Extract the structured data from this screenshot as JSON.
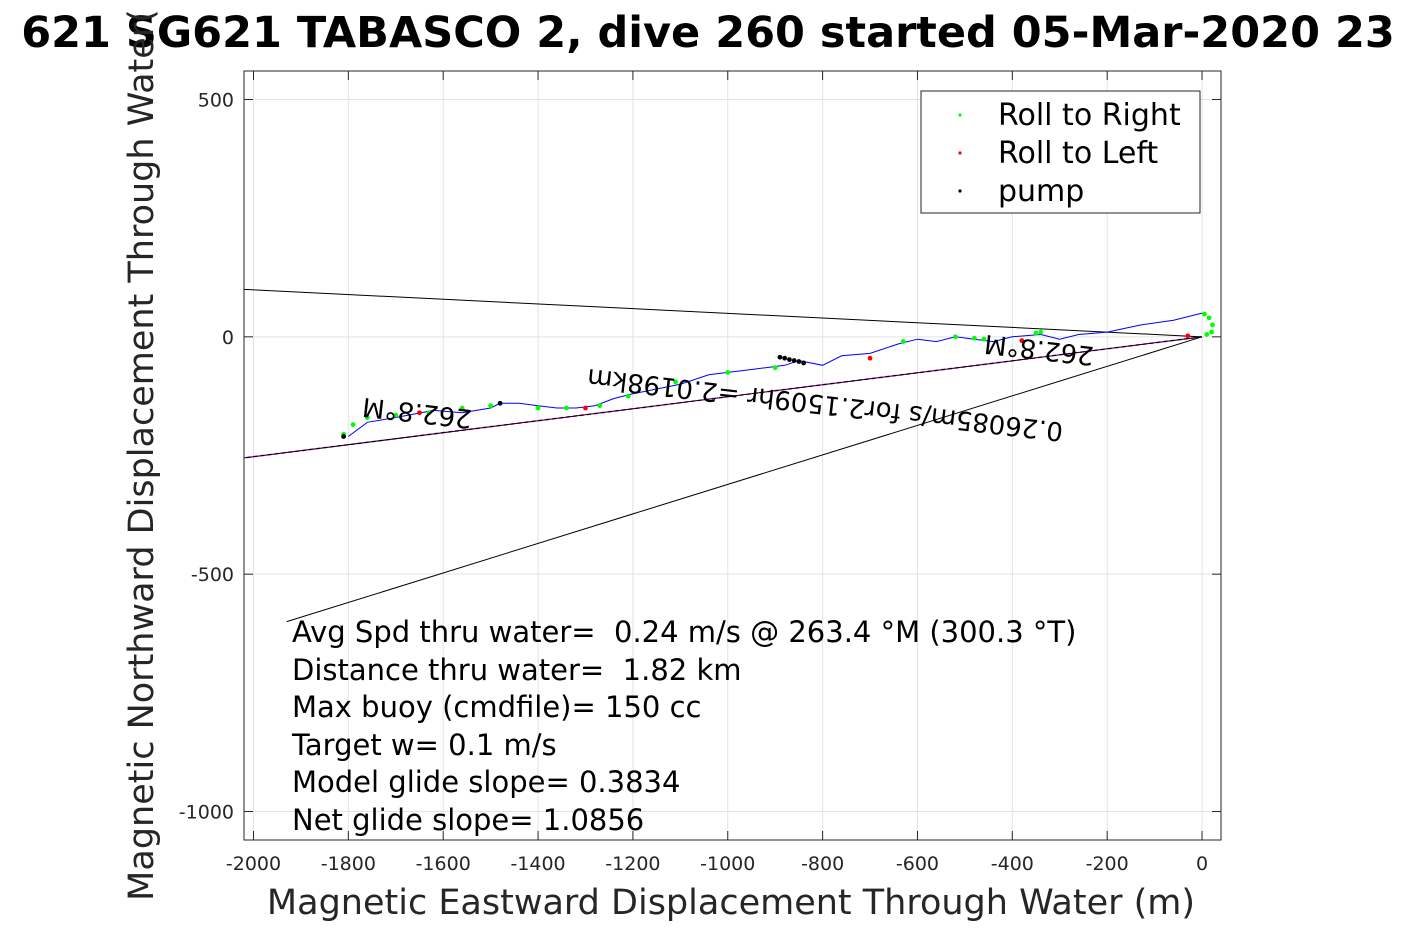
{
  "chart_data": {
    "type": "line",
    "title": "621 SG621 TABASCO 2, dive 260 started 05-Mar-2020 23",
    "xlabel": "Magnetic Eastward Displacement Through Water (m)",
    "ylabel": "Magnetic Northward Displacement Through Water(",
    "xlim": [
      -2020,
      40
    ],
    "ylim": [
      -1060,
      560
    ],
    "xticks": [
      -2000,
      -1800,
      -1600,
      -1400,
      -1200,
      -1000,
      -800,
      -600,
      -400,
      -200,
      0
    ],
    "yticks": [
      500,
      0,
      -500,
      -1000
    ],
    "grid": true,
    "legend_position": "top-right",
    "legend": [
      {
        "label": "Roll to Right",
        "color": "#00ff00"
      },
      {
        "label": "Roll to Left",
        "color": "#ff0000"
      },
      {
        "label": "pump",
        "color": "#000000"
      }
    ],
    "track": {
      "name": "track",
      "color": "#0000ff",
      "x": [
        0,
        -60,
        -130,
        -200,
        -260,
        -300,
        -340,
        -400,
        -440,
        -480,
        -520,
        -560,
        -600,
        -640,
        -700,
        -760,
        -800,
        -850,
        -880,
        -920,
        -960,
        -1000,
        -1040,
        -1100,
        -1150,
        -1200,
        -1240,
        -1280,
        -1320,
        -1360,
        -1400,
        -1440,
        -1480,
        -1500,
        -1560,
        -1620,
        -1700,
        -1760,
        -1800
      ],
      "y": [
        50,
        35,
        25,
        10,
        5,
        -5,
        5,
        0,
        -10,
        -5,
        0,
        -10,
        -5,
        -15,
        -35,
        -40,
        -60,
        -50,
        -60,
        -65,
        -70,
        -75,
        -80,
        -100,
        -110,
        -120,
        -130,
        -145,
        -150,
        -150,
        -145,
        -140,
        -140,
        -150,
        -160,
        -155,
        -170,
        -180,
        -210
      ]
    },
    "series": [
      {
        "name": "Roll to Right",
        "type": "scatter",
        "color": "#00ff00",
        "x": [
          5,
          15,
          22,
          20,
          10,
          -350,
          -340,
          -460,
          -480,
          -520,
          -630,
          -900,
          -1000,
          -1110,
          -1210,
          -1270,
          -1340,
          -1400,
          -1500,
          -1560,
          -1630,
          -1700,
          -1760,
          -1790,
          -1810
        ],
        "y": [
          48,
          40,
          25,
          10,
          5,
          8,
          10,
          -5,
          -3,
          0,
          -10,
          -65,
          -75,
          -95,
          -125,
          -145,
          -150,
          -150,
          -145,
          -150,
          -160,
          -165,
          -170,
          -185,
          -205
        ]
      },
      {
        "name": "Roll to Left",
        "type": "scatter",
        "color": "#ff0000",
        "x": [
          -30,
          -380,
          -700,
          -1300,
          -1650
        ],
        "y": [
          2,
          -8,
          -45,
          -150,
          -160
        ]
      },
      {
        "name": "pump",
        "type": "scatter",
        "color": "#000000",
        "x": [
          -840,
          -850,
          -860,
          -870,
          -880,
          -890,
          -1480,
          -1810
        ],
        "y": [
          -55,
          -52,
          -50,
          -48,
          -45,
          -43,
          -140,
          -210
        ]
      }
    ],
    "reference_lines": [
      {
        "name": "heading",
        "color": "#ff00ff",
        "dashed": true,
        "x": [
          0,
          -2020
        ],
        "y": [
          0,
          -255
        ]
      },
      {
        "name": "current",
        "color": "#000000",
        "x": [
          0,
          -2020
        ],
        "y": [
          0,
          -255
        ]
      },
      {
        "name": "upper bound",
        "color": "#000000",
        "x": [
          0,
          -2020
        ],
        "y": [
          0,
          100
        ]
      },
      {
        "name": "lower bound",
        "color": "#000000",
        "x": [
          0,
          -1930
        ],
        "y": [
          0,
          -600
        ]
      }
    ],
    "rotated_labels": {
      "heading_far": "262.8°M",
      "heading_near": "262.8°M",
      "current": "0.26085m/s for2.1509hr =2.0198km"
    },
    "annotations": [
      "Avg Spd thru water=  0.24 m/s @ 263.4 °M (300.3 °T)",
      "Distance thru water=  1.82 km",
      "Max buoy (cmdfile)= 150 cc",
      "Target w= 0.1 m/s",
      "Model glide slope= 0.3834",
      "Net glide slope= 1.0856"
    ]
  }
}
